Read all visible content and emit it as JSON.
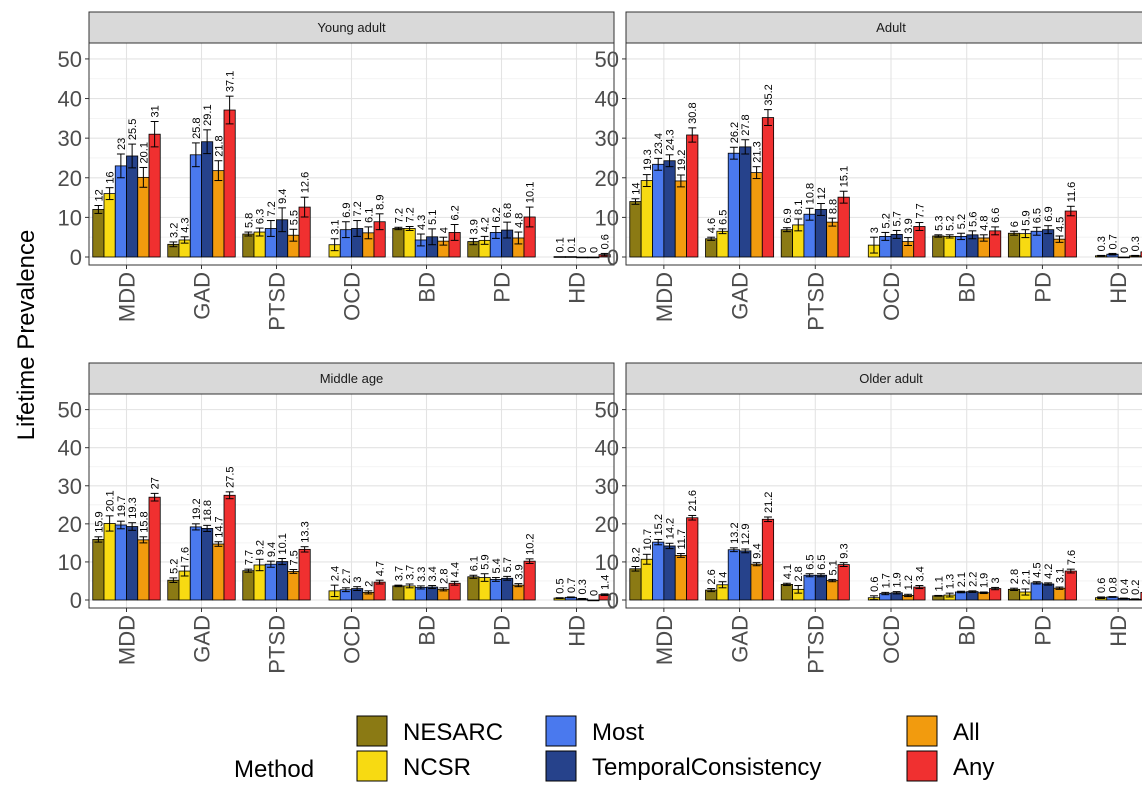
{
  "chart_data": {
    "type": "bar",
    "ylabel": "Lifetime Prevalence",
    "ylim": [
      0,
      52
    ],
    "yticks": [
      0,
      10,
      20,
      30,
      40,
      50
    ],
    "categories": [
      "MDD",
      "GAD",
      "PTSD",
      "OCD",
      "BD",
      "PD",
      "HD"
    ],
    "legend": {
      "title": "Method",
      "position": "bottom",
      "items": [
        {
          "name": "NESARC",
          "color": "#8B7A14"
        },
        {
          "name": "NCSR",
          "color": "#F7DA12"
        },
        {
          "name": "Most",
          "color": "#4A79EE"
        },
        {
          "name": "TemporalConsistency",
          "color": "#26428B"
        },
        {
          "name": "All",
          "color": "#F29B0E"
        },
        {
          "name": "Any",
          "color": "#F03030"
        }
      ]
    },
    "panels": [
      {
        "title": "Young adult",
        "values": [
          {
            "category": "MDD",
            "values": [
              12,
              16,
              23,
              25.5,
              20.1,
              31
            ],
            "errors": [
              1,
              1.5,
              3,
              3,
              2.5,
              3.2
            ]
          },
          {
            "category": "GAD",
            "values": [
              3.2,
              4.3,
              25.8,
              29.1,
              21.8,
              37.1
            ],
            "errors": [
              0.6,
              0.8,
              3,
              3,
              2.5,
              3.5
            ]
          },
          {
            "category": "PTSD",
            "values": [
              5.8,
              6.3,
              7.2,
              9.4,
              5.5,
              12.6
            ],
            "errors": [
              0.5,
              1,
              2,
              3,
              1.5,
              2.5
            ]
          },
          {
            "category": "OCD",
            "values": [
              null,
              3.1,
              6.9,
              7.2,
              6.1,
              8.9
            ],
            "errors": [
              0,
              1.5,
              2,
              2,
              1.5,
              2
            ]
          },
          {
            "category": "BD",
            "values": [
              7.2,
              7.2,
              4.3,
              5.1,
              4,
              6.2
            ],
            "errors": [
              0.3,
              0.5,
              1.5,
              2,
              1,
              2
            ]
          },
          {
            "category": "PD",
            "values": [
              3.9,
              4.2,
              6.2,
              6.8,
              4.8,
              10.1
            ],
            "errors": [
              0.8,
              1,
              1.5,
              2,
              1.5,
              2.5
            ]
          },
          {
            "category": "HD",
            "values": [
              null,
              0.1,
              0.1,
              0,
              0,
              0.6
            ],
            "errors": [
              0,
              0,
              0,
              0,
              0,
              0.3
            ]
          }
        ]
      },
      {
        "title": "Adult",
        "values": [
          {
            "category": "MDD",
            "values": [
              14,
              19.3,
              23.4,
              24.3,
              19.2,
              30.8
            ],
            "errors": [
              0.7,
              1.5,
              1.5,
              1.5,
              1.5,
              1.8
            ]
          },
          {
            "category": "GAD",
            "values": [
              4.6,
              6.5,
              26.2,
              27.8,
              21.3,
              35.2
            ],
            "errors": [
              0.4,
              0.6,
              1.5,
              1.8,
              1.5,
              2
            ]
          },
          {
            "category": "PTSD",
            "values": [
              6.9,
              8.1,
              10.8,
              12,
              8.8,
              15.1
            ],
            "errors": [
              0.5,
              1.5,
              1.5,
              1.5,
              1,
              1.5
            ]
          },
          {
            "category": "OCD",
            "values": [
              null,
              3,
              5.2,
              5.7,
              3.9,
              7.7
            ],
            "errors": [
              0,
              2,
              1,
              1,
              1,
              1
            ]
          },
          {
            "category": "BD",
            "values": [
              5.3,
              5.2,
              5.2,
              5.6,
              4.8,
              6.6
            ],
            "errors": [
              0.3,
              0.4,
              0.8,
              1,
              0.8,
              1
            ]
          },
          {
            "category": "PD",
            "values": [
              6,
              5.9,
              6.5,
              6.9,
              4.5,
              11.6
            ],
            "errors": [
              0.5,
              1,
              1,
              1,
              0.8,
              1.2
            ]
          },
          {
            "category": "HD",
            "values": [
              null,
              0.3,
              0.7,
              0,
              0.3,
              1.3
            ],
            "errors": [
              0,
              0.1,
              0.2,
              0,
              0.1,
              0.3
            ]
          }
        ]
      },
      {
        "title": "Middle age",
        "values": [
          {
            "category": "MDD",
            "values": [
              15.9,
              20.1,
              19.7,
              19.3,
              15.8,
              27
            ],
            "errors": [
              0.7,
              2,
              1,
              1,
              0.8,
              1
            ]
          },
          {
            "category": "GAD",
            "values": [
              5.2,
              7.6,
              19.2,
              18.8,
              14.7,
              27.5
            ],
            "errors": [
              0.6,
              1.3,
              0.8,
              0.8,
              0.6,
              0.9
            ]
          },
          {
            "category": "PTSD",
            "values": [
              7.7,
              9.2,
              9.4,
              10.1,
              7.5,
              13.3
            ],
            "errors": [
              0.4,
              1.5,
              0.8,
              0.8,
              0.5,
              0.7
            ]
          },
          {
            "category": "OCD",
            "values": [
              null,
              2.4,
              2.7,
              3,
              2,
              4.7
            ],
            "errors": [
              0,
              1.5,
              0.5,
              0.5,
              0.4,
              0.5
            ]
          },
          {
            "category": "BD",
            "values": [
              3.7,
              3.7,
              3.3,
              3.4,
              2.8,
              4.4
            ],
            "errors": [
              0.2,
              0.5,
              0.4,
              0.4,
              0.4,
              0.5
            ]
          },
          {
            "category": "PD",
            "values": [
              6.1,
              5.9,
              5.4,
              5.7,
              3.9,
              10.2
            ],
            "errors": [
              0.4,
              1,
              0.5,
              0.5,
              0.4,
              0.6
            ]
          },
          {
            "category": "HD",
            "values": [
              null,
              0.5,
              0.7,
              0.3,
              0,
              1.4
            ],
            "errors": [
              0,
              0.1,
              0.1,
              0.1,
              0,
              0.2
            ]
          }
        ]
      },
      {
        "title": "Older adult",
        "values": [
          {
            "category": "MDD",
            "values": [
              8.2,
              10.7,
              15.2,
              14.2,
              11.7,
              21.6
            ],
            "errors": [
              0.6,
              1.3,
              0.7,
              0.7,
              0.5,
              0.6
            ]
          },
          {
            "category": "GAD",
            "values": [
              2.6,
              4,
              13.2,
              12.9,
              9.4,
              21.2
            ],
            "errors": [
              0.4,
              0.8,
              0.5,
              0.5,
              0.4,
              0.6
            ]
          },
          {
            "category": "PTSD",
            "values": [
              4.1,
              2.8,
              6.5,
              6.5,
              5.1,
              9.3
            ],
            "errors": [
              0.3,
              1,
              0.4,
              0.4,
              0.3,
              0.5
            ]
          },
          {
            "category": "OCD",
            "values": [
              null,
              0.6,
              1.7,
              1.9,
              1.2,
              3.4
            ],
            "errors": [
              0,
              0.5,
              0.3,
              0.3,
              0.3,
              0.4
            ]
          },
          {
            "category": "BD",
            "values": [
              1.1,
              1.3,
              2.1,
              2.2,
              1.9,
              3
            ],
            "errors": [
              0.1,
              0.5,
              0.2,
              0.2,
              0.2,
              0.3
            ]
          },
          {
            "category": "PD",
            "values": [
              2.8,
              2.1,
              4.5,
              4.2,
              3.1,
              7.6
            ],
            "errors": [
              0.3,
              0.8,
              0.3,
              0.3,
              0.3,
              0.5
            ]
          },
          {
            "category": "HD",
            "values": [
              null,
              0.6,
              0.8,
              0.4,
              0.2,
              2
            ],
            "errors": [
              0,
              0.2,
              0.1,
              0.1,
              0.1,
              0.3
            ]
          }
        ]
      }
    ]
  }
}
